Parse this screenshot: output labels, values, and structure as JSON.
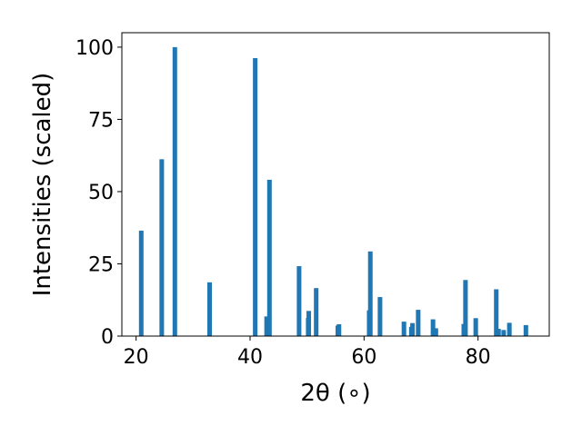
{
  "chart_data": {
    "type": "bar",
    "title": "",
    "xlabel": "2θ (∘)",
    "ylabel": "Intensities (scaled)",
    "xlim": [
      17.5,
      92.5
    ],
    "ylim": [
      0,
      105
    ],
    "xticks": [
      20,
      40,
      60,
      80
    ],
    "yticks": [
      0,
      25,
      50,
      75,
      100
    ],
    "grid": false,
    "color": "#1f77b4",
    "bar_width_deg": 0.8,
    "series": [
      {
        "x": [
          20.9,
          24.5,
          26.8,
          32.9,
          40.9,
          42.9,
          43.4,
          48.6,
          50.2,
          50.3,
          51.6,
          55.4,
          55.6,
          60.9,
          61.1,
          62.8,
          67.0,
          68.3,
          68.5,
          69.5,
          72.1,
          72.6,
          77.5,
          77.8,
          79.6,
          83.2,
          83.6,
          84.5,
          85.5,
          88.4
        ],
        "y": [
          36.5,
          61.2,
          100,
          18.6,
          96.2,
          6.8,
          54.1,
          24.2,
          6.3,
          8.7,
          16.6,
          3.6,
          4.1,
          8.9,
          29.3,
          13.5,
          5.0,
          3.2,
          4.5,
          9.1,
          5.8,
          2.7,
          4.2,
          19.4,
          6.2,
          16.2,
          2.5,
          2.1,
          4.6,
          3.8
        ]
      }
    ]
  }
}
